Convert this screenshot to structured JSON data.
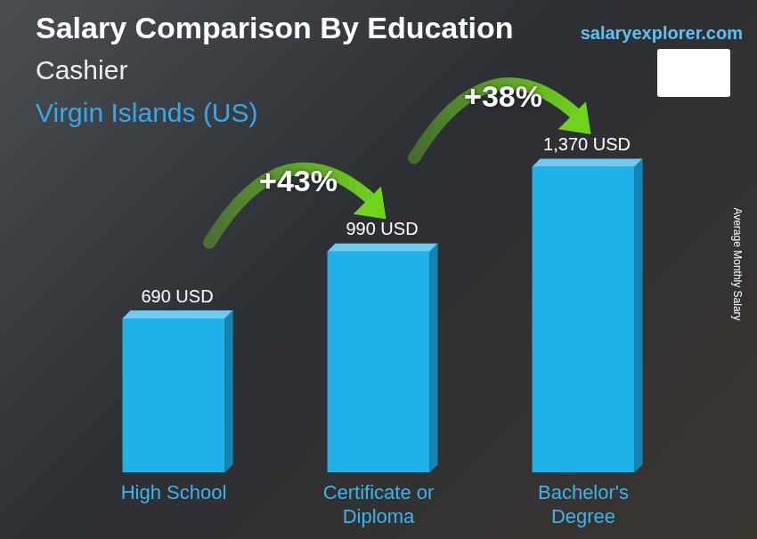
{
  "chart_data": {
    "type": "bar",
    "title": "Salary Comparison By Education",
    "subtitle": "Cashier",
    "location": "Virgin Islands (US)",
    "source": "salaryexplorer.com",
    "ylabel": "Average Monthly Salary",
    "categories": [
      "High School",
      "Certificate or Diploma",
      "Bachelor's Degree"
    ],
    "values": [
      690,
      990,
      1370
    ],
    "value_labels": [
      "690 USD",
      "990 USD",
      "1,370 USD"
    ],
    "annotations": [
      "+43%",
      "+38%"
    ],
    "color": "#1eb1ea",
    "ylim": [
      0,
      1400
    ],
    "grid": false,
    "data_labels": true,
    "tick_labels": "x"
  }
}
